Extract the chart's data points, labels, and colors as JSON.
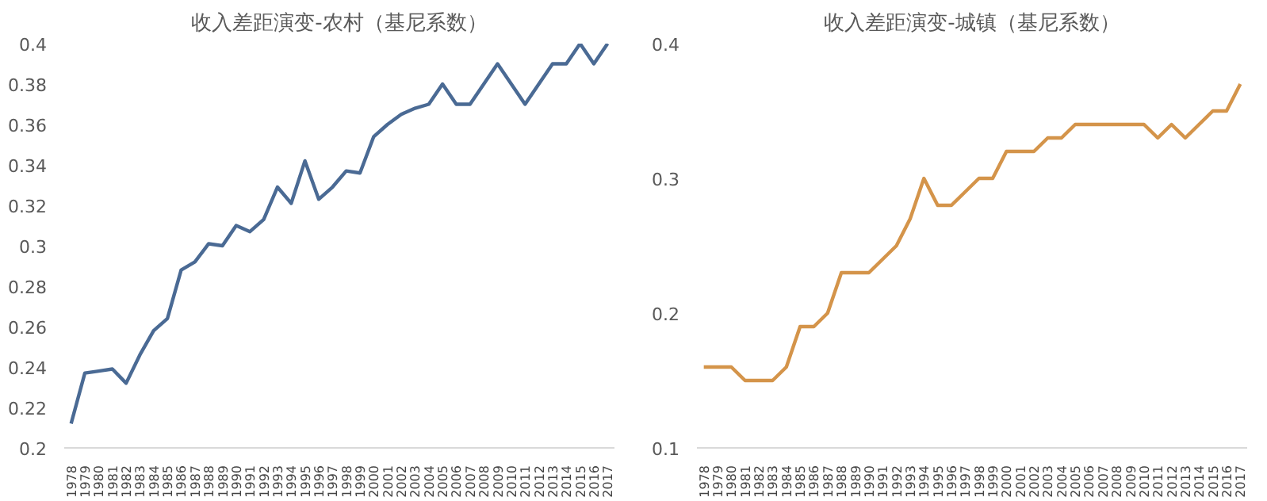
{
  "chart_data": [
    {
      "type": "line",
      "title": "收入差距演变-农村（基尼系数）",
      "categories": [
        "1978",
        "1979",
        "1980",
        "1981",
        "1982",
        "1983",
        "1984",
        "1985",
        "1986",
        "1987",
        "1988",
        "1989",
        "1990",
        "1991",
        "1992",
        "1993",
        "1994",
        "1995",
        "1996",
        "1997",
        "1998",
        "1999",
        "2000",
        "2001",
        "2002",
        "2003",
        "2004",
        "2005",
        "2006",
        "2007",
        "2008",
        "2009",
        "2010",
        "2011",
        "2012",
        "2013",
        "2014",
        "2015",
        "2016",
        "2017"
      ],
      "series": [
        {
          "color": "#4a6a94",
          "values": [
            0.212,
            0.237,
            0.238,
            0.239,
            0.232,
            0.246,
            0.258,
            0.264,
            0.288,
            0.292,
            0.301,
            0.3,
            0.31,
            0.307,
            0.313,
            0.329,
            0.321,
            0.342,
            0.323,
            0.329,
            0.337,
            0.336,
            0.354,
            0.36,
            0.365,
            0.368,
            0.37,
            0.38,
            0.37,
            0.37,
            0.38,
            0.39,
            0.38,
            0.37,
            0.38,
            0.39,
            0.39,
            0.4,
            0.39,
            0.4
          ]
        }
      ],
      "ylim": [
        0.2,
        0.4
      ],
      "yticks": [
        0.2,
        0.22,
        0.24,
        0.26,
        0.28,
        0.3,
        0.32,
        0.34,
        0.36,
        0.38,
        0.4
      ],
      "grid": false,
      "marker": "none",
      "line_style": "solid"
    },
    {
      "type": "line",
      "title": "收入差距演变-城镇（基尼系数）",
      "categories": [
        "1978",
        "1979",
        "1980",
        "1981",
        "1982",
        "1983",
        "1984",
        "1985",
        "1986",
        "1987",
        "1988",
        "1989",
        "1990",
        "1991",
        "1992",
        "1993",
        "1994",
        "1995",
        "1996",
        "1997",
        "1998",
        "1999",
        "2000",
        "2001",
        "2002",
        "2003",
        "2004",
        "2005",
        "2006",
        "2007",
        "2008",
        "2009",
        "2010",
        "2011",
        "2012",
        "2013",
        "2014",
        "2015",
        "2016",
        "2017"
      ],
      "series": [
        {
          "color": "#d4944a",
          "values": [
            0.16,
            0.16,
            0.16,
            0.15,
            0.15,
            0.15,
            0.16,
            0.19,
            0.19,
            0.2,
            0.23,
            0.23,
            0.23,
            0.24,
            0.25,
            0.27,
            0.3,
            0.28,
            0.28,
            0.29,
            0.3,
            0.3,
            0.32,
            0.32,
            0.32,
            0.33,
            0.33,
            0.34,
            0.34,
            0.34,
            0.34,
            0.34,
            0.34,
            0.33,
            0.34,
            0.33,
            0.34,
            0.35,
            0.35,
            0.37
          ]
        }
      ],
      "ylim": [
        0.1,
        0.4
      ],
      "yticks": [
        0.1,
        0.2,
        0.3,
        0.4
      ],
      "grid": false,
      "marker": "none",
      "line_style": "solid"
    }
  ]
}
